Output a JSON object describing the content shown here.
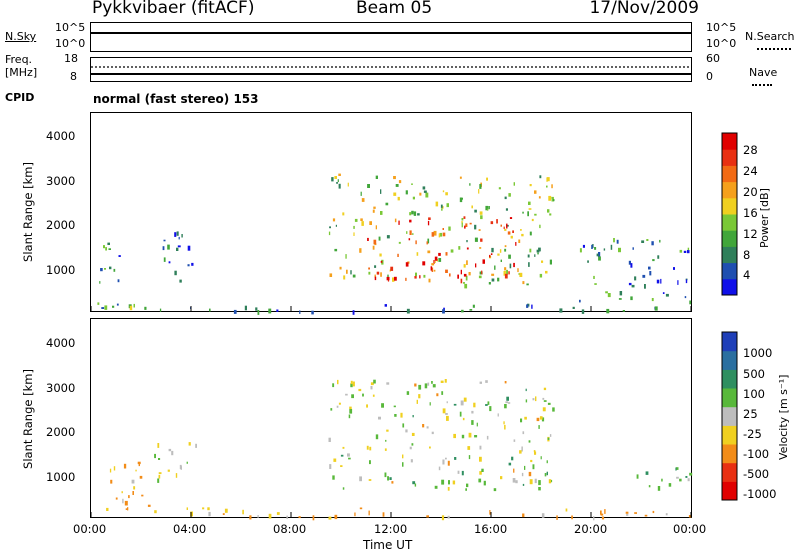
{
  "header": {
    "station": "Pykkvibaer (fitACF)",
    "beam": "Beam 05",
    "date": "17/Nov/2009"
  },
  "nsky_panel": {
    "left_label": "N.Sky",
    "left_ticks": [
      "10^5",
      "10^0"
    ],
    "right_ticks": [
      "10^5",
      "10^0"
    ],
    "right_label": "N.Search",
    "right_legend_style": "dotted"
  },
  "freq_panel": {
    "left_label_1": "Freq.",
    "left_label_2": "[MHz]",
    "left_ticks": [
      "18",
      "8"
    ],
    "right_ticks": [
      "60",
      "0"
    ],
    "right_label": "Nave",
    "right_legend_style": "dotted"
  },
  "cpid": {
    "label": "CPID",
    "text": "normal (fast stereo) 153"
  },
  "axes": {
    "ylabel": "Slant Range [km]",
    "y_ticks": [
      "1000",
      "2000",
      "3000",
      "4000"
    ],
    "x_ticks": [
      "00:00",
      "04:00",
      "08:00",
      "12:00",
      "16:00",
      "20:00",
      "00:00"
    ],
    "xlabel": "Time UT"
  },
  "power_scale": {
    "label": "Power [dB]",
    "ticks": [
      "4",
      "8",
      "12",
      "16",
      "20",
      "24",
      "28"
    ],
    "colors": [
      "#1010e8",
      "#1f4fb0",
      "#2f7f5a",
      "#41a63a",
      "#7ac836",
      "#f0d020",
      "#f5a01c",
      "#f26a14",
      "#e83012",
      "#e00000"
    ]
  },
  "velocity_scale": {
    "label": "Velocity [m s⁻¹]",
    "ticks": [
      "1000",
      "500",
      "100",
      "25",
      "-25",
      "-100",
      "-500",
      "-1000"
    ],
    "colors": [
      "#1f3fb8",
      "#2a6fa0",
      "#2f8f60",
      "#58b83a",
      "#bdbdbd",
      "#f0d020",
      "#f28c18",
      "#e83012",
      "#e00000"
    ]
  },
  "chart_data": [
    {
      "type": "heatmap",
      "title": "Power [dB]",
      "xlabel": "Time UT",
      "ylabel": "Slant Range [km]",
      "xlim": [
        "00:00",
        "24:00"
      ],
      "ylim": [
        180,
        4500
      ],
      "colorbar_range": [
        0,
        30
      ],
      "regions": [
        {
          "t0": 0.0,
          "t1": 2.3,
          "r0": 250,
          "r1": 500,
          "value": 10
        },
        {
          "t0": 0.0,
          "t1": 1.3,
          "r0": 700,
          "r1": 1700,
          "value": 8
        },
        {
          "t0": 2.5,
          "t1": 4.2,
          "r0": 850,
          "r1": 1950,
          "value": 6
        },
        {
          "t0": 9.5,
          "t1": 18.5,
          "r0": 750,
          "r1": 3200,
          "value": 14
        },
        {
          "t0": 11.0,
          "t1": 17.0,
          "r0": 880,
          "r1": 2300,
          "value": 24
        },
        {
          "t0": 19.5,
          "t1": 24.0,
          "r0": 400,
          "r1": 1800,
          "value": 8
        },
        {
          "t0": 0.0,
          "t1": 24.0,
          "r0": 180,
          "r1": 350,
          "value": 6
        }
      ]
    },
    {
      "type": "heatmap",
      "title": "Velocity [m s⁻¹]",
      "xlabel": "Time UT",
      "ylabel": "Slant Range [km]",
      "xlim": [
        "00:00",
        "24:00"
      ],
      "ylim": [
        180,
        4500
      ],
      "colorbar_range": [
        -1000,
        1000
      ],
      "regions": [
        {
          "t0": 0.0,
          "t1": 2.3,
          "r0": 350,
          "r1": 1400,
          "value": -100
        },
        {
          "t0": 2.5,
          "t1": 4.2,
          "r0": 900,
          "r1": 1950,
          "value": 0
        },
        {
          "t0": 9.5,
          "t1": 18.5,
          "r0": 800,
          "r1": 3200,
          "value": 0
        },
        {
          "t0": 21.5,
          "t1": 24.0,
          "r0": 700,
          "r1": 1300,
          "value": 100
        },
        {
          "t0": 0.0,
          "t1": 24.0,
          "r0": 180,
          "r1": 400,
          "value": -100
        }
      ]
    }
  ]
}
